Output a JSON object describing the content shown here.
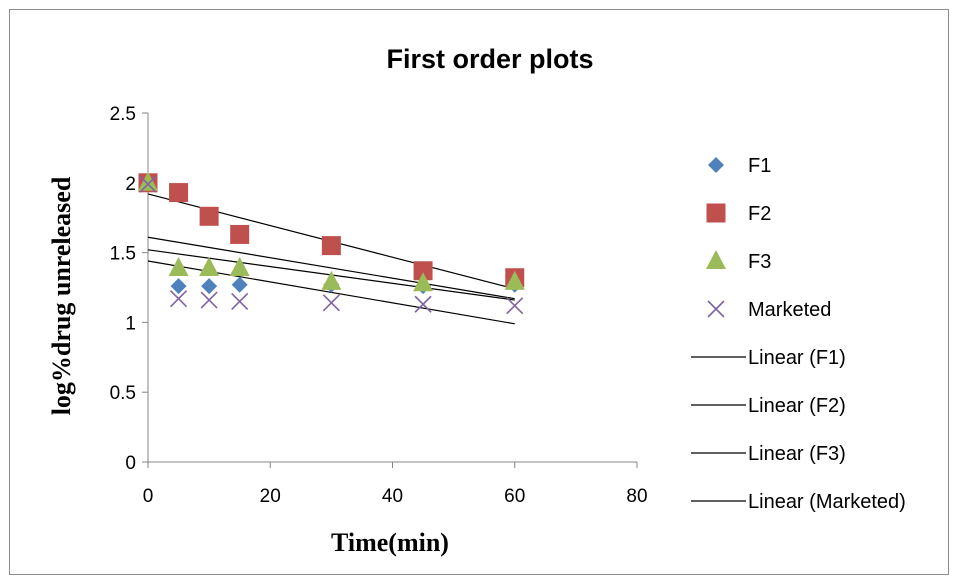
{
  "chart_data": {
    "type": "scatter",
    "title": "First order plots",
    "xlabel": "Time(min)",
    "ylabel": "log%drug unreleased",
    "xlim": [
      0,
      80
    ],
    "ylim": [
      0,
      2.5
    ],
    "xticks": [
      0,
      20,
      40,
      60,
      80
    ],
    "yticks": [
      0,
      0.5,
      1,
      1.5,
      2,
      2.5
    ],
    "xtick_labels": [
      "0",
      "20",
      "40",
      "60",
      "80"
    ],
    "ytick_labels": [
      "0",
      "0.5",
      "1",
      "1.5",
      "2",
      "2.5"
    ],
    "grid": false,
    "legend_position": "right",
    "series": [
      {
        "name": "F1",
        "marker": "diamond",
        "color": "#4f81bd",
        "x": [
          0,
          5,
          10,
          15,
          30,
          45,
          60
        ],
        "y": [
          2.0,
          1.26,
          1.26,
          1.27,
          1.27,
          1.26,
          1.27
        ]
      },
      {
        "name": "F2",
        "marker": "square",
        "color": "#c0504d",
        "x": [
          0,
          5,
          10,
          15,
          30,
          45,
          60
        ],
        "y": [
          2.0,
          1.93,
          1.76,
          1.63,
          1.55,
          1.37,
          1.32
        ]
      },
      {
        "name": "F3",
        "marker": "triangle",
        "color": "#9bbb59",
        "x": [
          0,
          5,
          10,
          15,
          30,
          45,
          60
        ],
        "y": [
          2.0,
          1.39,
          1.39,
          1.39,
          1.29,
          1.28,
          1.29
        ]
      },
      {
        "name": "Marketed",
        "marker": "cross",
        "color": "#8064a2",
        "x": [
          0,
          5,
          10,
          15,
          30,
          45,
          60
        ],
        "y": [
          1.99,
          1.17,
          1.16,
          1.15,
          1.14,
          1.13,
          1.12
        ]
      }
    ],
    "trendlines": [
      {
        "name": "Linear (F1)",
        "color": "#000000",
        "x": [
          0,
          60
        ],
        "y": [
          1.52,
          1.16
        ]
      },
      {
        "name": "Linear (F2)",
        "color": "#000000",
        "x": [
          0,
          60
        ],
        "y": [
          1.92,
          1.24
        ]
      },
      {
        "name": "Linear (F3)",
        "color": "#000000",
        "x": [
          0,
          60
        ],
        "y": [
          1.61,
          1.17
        ]
      },
      {
        "name": "Linear (Marketed)",
        "color": "#000000",
        "x": [
          0,
          60
        ],
        "y": [
          1.44,
          0.99
        ]
      }
    ]
  }
}
